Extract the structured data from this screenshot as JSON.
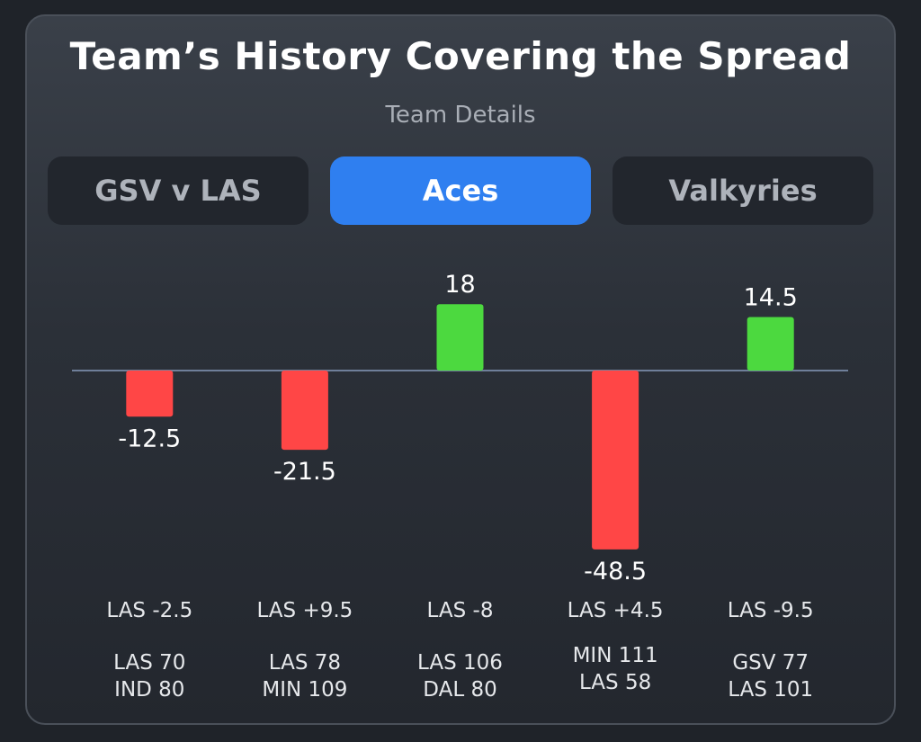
{
  "header": {
    "title": "Team’s History Covering the Spread",
    "subtitle": "Team Details"
  },
  "tabs": [
    {
      "label": "GSV v LAS",
      "active": false
    },
    {
      "label": "Aces",
      "active": true
    },
    {
      "label": "Valkyries",
      "active": false
    }
  ],
  "colors": {
    "positive": "#4cd93f",
    "negative": "#ff4646",
    "baseline": "#6f7f9a",
    "accent": "#2f7ff0"
  },
  "chart_data": {
    "type": "bar",
    "categories": [
      [
        "LAS 70",
        "IND 80"
      ],
      [
        "LAS 78",
        "MIN 109"
      ],
      [
        "LAS 106",
        "DAL 80"
      ],
      [
        "MIN 111",
        "LAS 58"
      ],
      [
        "GSV 77",
        "LAS 101"
      ]
    ],
    "spreads": [
      "LAS -2.5",
      "LAS +9.5",
      "LAS -8",
      "LAS +4.5",
      "LAS -9.5"
    ],
    "values": [
      -12.5,
      -21.5,
      18,
      -48.5,
      14.5
    ],
    "value_labels": [
      "-12.5",
      "-21.5",
      "18",
      "-48.5",
      "14.5"
    ],
    "baseline": 0,
    "ylim": [
      -48.5,
      18
    ],
    "grid": false,
    "title": "Team’s History Covering the Spread",
    "subtitle": "Team Details"
  }
}
